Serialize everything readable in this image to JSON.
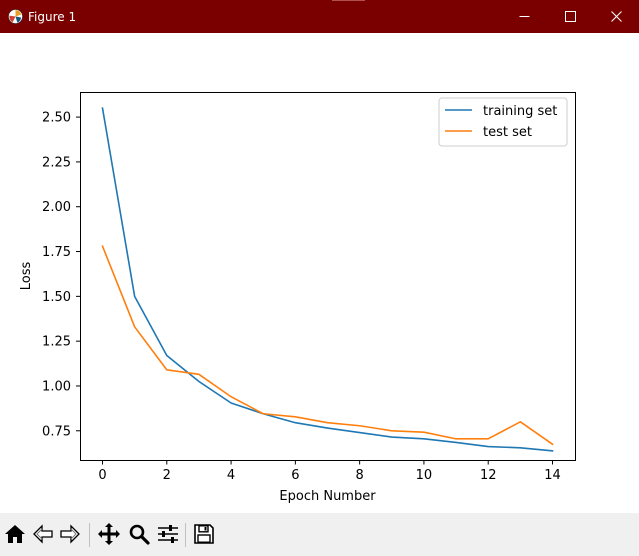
{
  "window": {
    "title": "Figure 1",
    "controls": [
      "minimize",
      "maximize",
      "close"
    ]
  },
  "toolbar": {
    "buttons": [
      "home-icon",
      "back-icon",
      "forward-icon",
      "pan-icon",
      "zoom-icon",
      "configure-subplots-icon",
      "save-icon"
    ]
  },
  "colors": {
    "titlebar": "#7a0000",
    "training": "#1f77b4",
    "test": "#ff7f0e"
  },
  "chart_data": {
    "type": "line",
    "title": "",
    "xlabel": "Epoch Number",
    "ylabel": "Loss",
    "xlim": [
      -0.7,
      14.7
    ],
    "ylim": [
      0.587,
      2.64
    ],
    "xticks": [
      0,
      2,
      4,
      6,
      8,
      10,
      12,
      14
    ],
    "xtick_labels": [
      "0",
      "2",
      "4",
      "6",
      "8",
      "10",
      "12",
      "14"
    ],
    "yticks": [
      0.75,
      1.0,
      1.25,
      1.5,
      1.75,
      2.0,
      2.25,
      2.5
    ],
    "ytick_labels": [
      "0.75",
      "1.00",
      "1.25",
      "1.50",
      "1.75",
      "2.00",
      "2.25",
      "2.50"
    ],
    "grid": false,
    "legend": "top-right",
    "x": [
      0,
      1,
      2,
      3,
      4,
      5,
      6,
      7,
      8,
      9,
      10,
      11,
      12,
      13,
      14
    ],
    "series": [
      {
        "name": "training set",
        "color": "#1f77b4",
        "values": [
          2.55,
          1.5,
          1.17,
          1.025,
          0.905,
          0.845,
          0.795,
          0.765,
          0.74,
          0.715,
          0.705,
          0.685,
          0.662,
          0.655,
          0.638
        ]
      },
      {
        "name": "test set",
        "color": "#ff7f0e",
        "values": [
          1.78,
          1.33,
          1.09,
          1.065,
          0.94,
          0.845,
          0.828,
          0.795,
          0.778,
          0.75,
          0.742,
          0.705,
          0.705,
          0.8,
          0.675
        ]
      }
    ]
  }
}
